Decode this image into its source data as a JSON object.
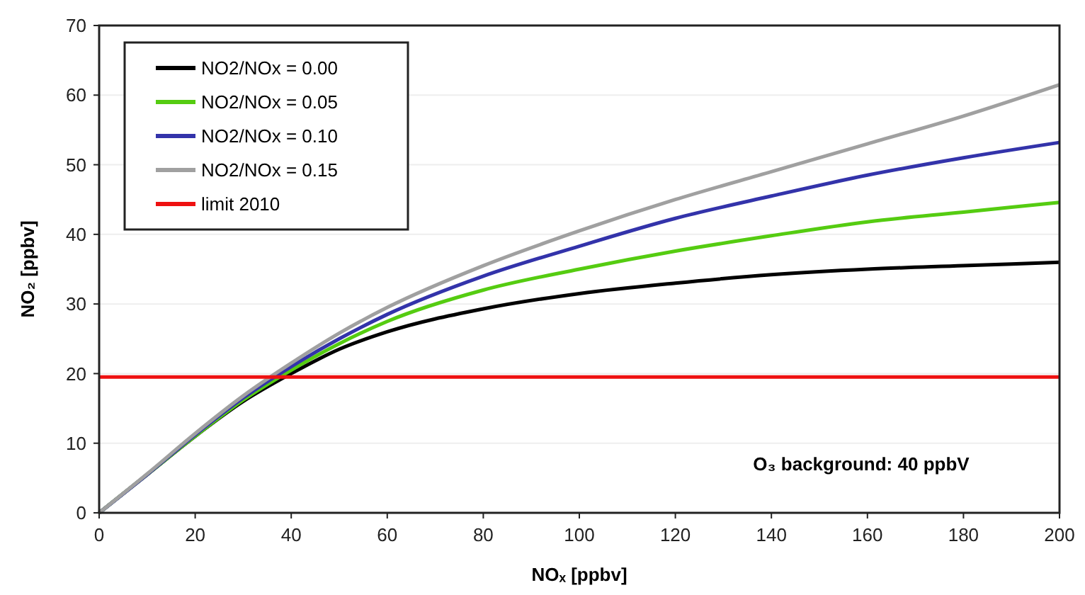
{
  "chart_data": {
    "type": "line",
    "xlabel": "NOₓ [ppbv]",
    "ylabel": "NO₂ [ppbv]",
    "xlim": [
      0,
      200
    ],
    "ylim": [
      0,
      70
    ],
    "xticks": [
      0,
      20,
      40,
      60,
      80,
      100,
      120,
      140,
      160,
      180,
      200
    ],
    "yticks": [
      0,
      10,
      20,
      30,
      40,
      50,
      60,
      70
    ],
    "grid": "y",
    "legend": "top left",
    "marker": "none",
    "line_style": "solid",
    "x": [
      0,
      10,
      20,
      30,
      40,
      50,
      60,
      80,
      100,
      120,
      140,
      160,
      180,
      200
    ],
    "series": [
      {
        "name": "NO2/NOx = 0.00",
        "color": "#000000",
        "values": [
          0,
          5.5,
          11,
          16,
          20,
          23.5,
          26,
          29.3,
          31.5,
          33,
          34.2,
          35,
          35.5,
          36
        ]
      },
      {
        "name": "NO2/NOx = 0.05",
        "color": "#55cc11",
        "values": [
          0,
          5.5,
          11,
          16.2,
          20.5,
          24.3,
          27.5,
          32,
          35,
          37.6,
          39.8,
          41.8,
          43.2,
          44.6
        ]
      },
      {
        "name": "NO2/NOx = 0.10",
        "color": "#3333aa",
        "values": [
          0,
          5.5,
          11.2,
          16.5,
          21,
          25,
          28.5,
          34,
          38.3,
          42.3,
          45.5,
          48.5,
          51,
          53.2
        ]
      },
      {
        "name": "NO2/NOx = 0.15",
        "color": "#a0a0a0",
        "values": [
          0,
          5.6,
          11.4,
          16.8,
          21.5,
          25.8,
          29.5,
          35.5,
          40.5,
          45,
          49,
          53,
          57,
          61.5
        ]
      },
      {
        "name": "limit 2010",
        "color": "#ee1111",
        "x": [
          0,
          200
        ],
        "values": [
          19.5,
          19.5
        ]
      }
    ],
    "annotations": [
      "O₃ background: 40 ppbV"
    ]
  }
}
